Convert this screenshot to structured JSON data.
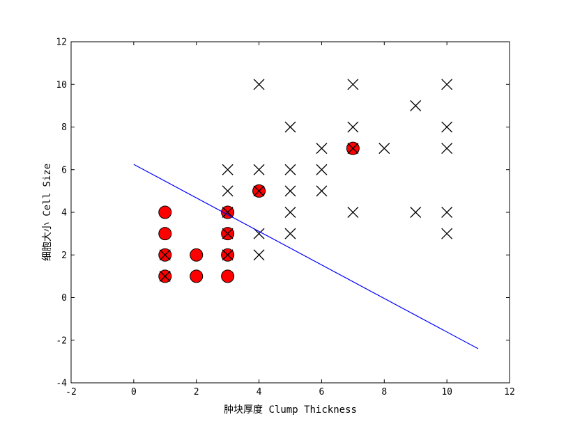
{
  "chart_data": {
    "type": "scatter",
    "xlabel": "肿块厚度 Clump Thickness",
    "ylabel": "细胞大小 Cell Size",
    "xlim": [
      -2,
      12
    ],
    "ylim": [
      -4,
      12
    ],
    "xticks": [
      -2,
      0,
      2,
      4,
      6,
      8,
      10,
      12
    ],
    "yticks": [
      -4,
      -2,
      0,
      2,
      4,
      6,
      8,
      10,
      12
    ],
    "grid": false,
    "colors": {
      "circle_fill": "#ff0000",
      "circle_edge": "#000000",
      "cross": "#000000",
      "line": "#0000ff"
    },
    "series": [
      {
        "marker": "circle",
        "points": [
          [
            1,
            1
          ],
          [
            1,
            2
          ],
          [
            1,
            3
          ],
          [
            1,
            4
          ],
          [
            2,
            1
          ],
          [
            2,
            2
          ],
          [
            3,
            1
          ],
          [
            3,
            2
          ],
          [
            3,
            3
          ],
          [
            3,
            4
          ],
          [
            4,
            5
          ],
          [
            7,
            7
          ]
        ]
      },
      {
        "marker": "x",
        "points": [
          [
            1,
            1
          ],
          [
            1,
            2
          ],
          [
            3,
            2
          ],
          [
            3,
            3
          ],
          [
            3,
            4
          ],
          [
            3,
            5
          ],
          [
            3,
            6
          ],
          [
            4,
            2
          ],
          [
            4,
            3
          ],
          [
            4,
            5
          ],
          [
            4,
            6
          ],
          [
            4,
            10
          ],
          [
            5,
            3
          ],
          [
            5,
            4
          ],
          [
            5,
            5
          ],
          [
            5,
            6
          ],
          [
            5,
            8
          ],
          [
            6,
            5
          ],
          [
            6,
            6
          ],
          [
            6,
            7
          ],
          [
            7,
            4
          ],
          [
            7,
            7
          ],
          [
            7,
            8
          ],
          [
            7,
            10
          ],
          [
            8,
            7
          ],
          [
            9,
            4
          ],
          [
            9,
            9
          ],
          [
            10,
            3
          ],
          [
            10,
            4
          ],
          [
            10,
            7
          ],
          [
            10,
            8
          ],
          [
            10,
            10
          ]
        ]
      },
      {
        "marker": "line",
        "points": [
          [
            0,
            6.25
          ],
          [
            11,
            -2.4
          ]
        ]
      }
    ]
  }
}
